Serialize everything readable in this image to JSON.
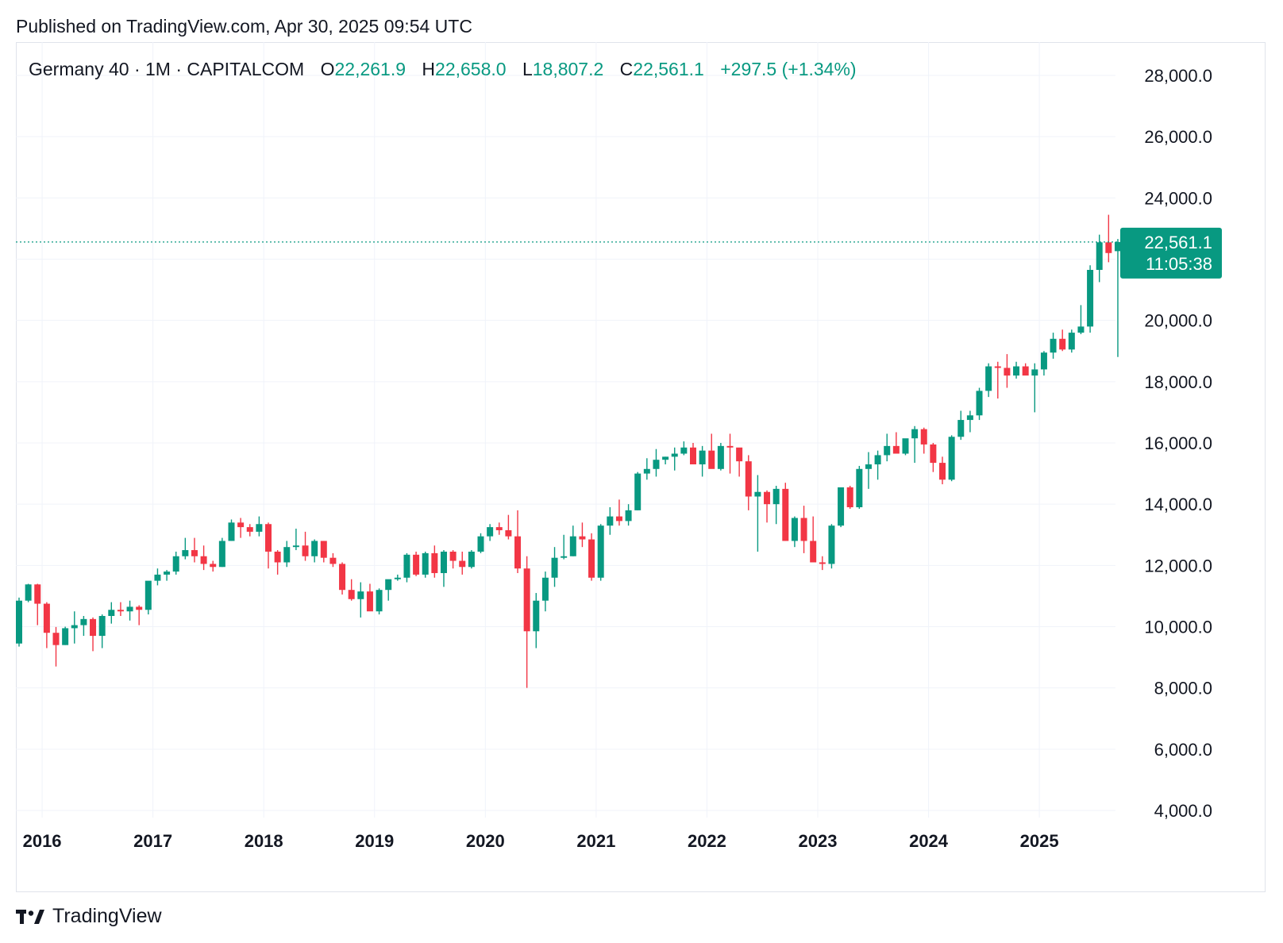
{
  "header": {
    "published": "Published on TradingView.com, Apr 30, 2025 09:54 UTC"
  },
  "legend": {
    "symbol": "Germany 40 · 1M · CAPITALCOM",
    "o_label": "O",
    "o_value": "22,261.9",
    "h_label": "H",
    "h_value": "22,658.0",
    "l_label": "L",
    "l_value": "18,807.2",
    "c_label": "C",
    "c_value": "22,561.1",
    "change": "+297.5 (+1.34%)"
  },
  "price_tag": {
    "price": "22,561.1",
    "countdown": "11:05:38"
  },
  "brand": {
    "name": "TradingView",
    "logo_icon": "tradingview-logo-icon"
  },
  "colors": {
    "up": "#089981",
    "down": "#f23645",
    "grid": "#f0f3fa",
    "text": "#131722"
  },
  "chart_data": {
    "type": "candlestick",
    "symbol": "Germany 40",
    "interval": "1M",
    "y_axis": {
      "min": 4000,
      "max": 28000,
      "ticks": [
        28000,
        26000,
        24000,
        22000,
        20000,
        18000,
        16000,
        14000,
        12000,
        10000,
        8000,
        6000,
        4000
      ],
      "tick_labels": [
        "28,000.0",
        "26,000.0",
        "24,000.0",
        "",
        "20,000.0",
        "18,000.0",
        "16,000.0",
        "14,000.0",
        "12,000.0",
        "10,000.0",
        "8,000.0",
        "6,000.0",
        "4,000.0"
      ],
      "position": "right"
    },
    "x_axis": {
      "labels": [
        "2016",
        "2017",
        "2018",
        "2019",
        "2020",
        "2021",
        "2022",
        "2023",
        "2024",
        "2025"
      ]
    },
    "grid": true,
    "last_price_line": 22561.1,
    "start": "2015-10",
    "candles": [
      [
        9450,
        10950,
        9350,
        10850
      ],
      [
        10850,
        11400,
        10800,
        11380
      ],
      [
        11380,
        11400,
        10050,
        10750
      ],
      [
        10750,
        10800,
        9300,
        9800
      ],
      [
        9800,
        9990,
        8700,
        9400
      ],
      [
        9400,
        10000,
        9400,
        9950
      ],
      [
        9950,
        10500,
        9450,
        10050
      ],
      [
        10050,
        10350,
        9700,
        10250
      ],
      [
        10250,
        10300,
        9200,
        9700
      ],
      [
        9700,
        10400,
        9300,
        10350
      ],
      [
        10350,
        10800,
        10100,
        10550
      ],
      [
        10550,
        10800,
        10350,
        10500
      ],
      [
        10500,
        10850,
        10200,
        10650
      ],
      [
        10650,
        10700,
        10050,
        10550
      ],
      [
        10550,
        11450,
        10400,
        11500
      ],
      [
        11500,
        11900,
        11350,
        11700
      ],
      [
        11700,
        11850,
        11500,
        11800
      ],
      [
        11800,
        12450,
        11700,
        12300
      ],
      [
        12300,
        12900,
        12200,
        12500
      ],
      [
        12500,
        12900,
        12100,
        12300
      ],
      [
        12300,
        12650,
        11850,
        12050
      ],
      [
        12050,
        12150,
        11800,
        11950
      ],
      [
        11950,
        12900,
        11950,
        12800
      ],
      [
        12800,
        13500,
        12800,
        13400
      ],
      [
        13400,
        13550,
        12900,
        13250
      ],
      [
        13250,
        13350,
        12950,
        13100
      ],
      [
        13100,
        13600,
        12950,
        13350
      ],
      [
        13350,
        13400,
        11900,
        12450
      ],
      [
        12450,
        12500,
        11700,
        12100
      ],
      [
        12100,
        12800,
        11950,
        12600
      ],
      [
        12600,
        13200,
        12500,
        12650
      ],
      [
        12650,
        13100,
        12150,
        12300
      ],
      [
        12300,
        12850,
        12100,
        12800
      ],
      [
        12800,
        12800,
        12100,
        12250
      ],
      [
        12250,
        12400,
        11950,
        12050
      ],
      [
        12050,
        12100,
        11050,
        11200
      ],
      [
        11200,
        11550,
        10850,
        10900
      ],
      [
        10900,
        11450,
        10300,
        11150
      ],
      [
        11150,
        11400,
        10600,
        10500
      ],
      [
        10500,
        11250,
        10400,
        11200
      ],
      [
        11200,
        11500,
        10850,
        11550
      ],
      [
        11550,
        11700,
        11500,
        11600
      ],
      [
        11600,
        12400,
        11450,
        12350
      ],
      [
        12350,
        12450,
        11650,
        11700
      ],
      [
        11700,
        12450,
        11600,
        12400
      ],
      [
        12400,
        12650,
        11600,
        11750
      ],
      [
        11750,
        12500,
        11300,
        12450
      ],
      [
        12450,
        12500,
        11900,
        12150
      ],
      [
        12150,
        12450,
        11700,
        11950
      ],
      [
        11950,
        12500,
        11900,
        12450
      ],
      [
        12450,
        13050,
        12400,
        12950
      ],
      [
        12950,
        13350,
        12800,
        13250
      ],
      [
        13250,
        13400,
        13000,
        13150
      ],
      [
        13150,
        13650,
        12850,
        12950
      ],
      [
        12950,
        13800,
        11750,
        11900
      ],
      [
        11900,
        12300,
        8000,
        9850
      ],
      [
        9850,
        11100,
        9300,
        10850
      ],
      [
        10850,
        11800,
        10500,
        11600
      ],
      [
        11600,
        12600,
        11300,
        12250
      ],
      [
        12250,
        13000,
        12200,
        12300
      ],
      [
        12300,
        13300,
        12300,
        12950
      ],
      [
        12950,
        13400,
        12600,
        12850
      ],
      [
        12850,
        13050,
        11500,
        11600
      ],
      [
        11600,
        13350,
        11500,
        13300
      ],
      [
        13300,
        13900,
        13000,
        13600
      ],
      [
        13600,
        14150,
        13300,
        13450
      ],
      [
        13450,
        14000,
        13300,
        13800
      ],
      [
        13800,
        15050,
        13800,
        15000
      ],
      [
        15000,
        15500,
        14800,
        15150
      ],
      [
        15150,
        15800,
        14900,
        15450
      ],
      [
        15450,
        15550,
        15300,
        15550
      ],
      [
        15550,
        15850,
        15100,
        15650
      ],
      [
        15650,
        16050,
        15600,
        15850
      ],
      [
        15850,
        16000,
        15300,
        15300
      ],
      [
        15300,
        15900,
        14900,
        15750
      ],
      [
        15750,
        16300,
        15300,
        15150
      ],
      [
        15150,
        16000,
        15100,
        15900
      ],
      [
        15900,
        16300,
        15000,
        15850
      ],
      [
        15850,
        15700,
        14900,
        15400
      ],
      [
        15400,
        15600,
        13800,
        14250
      ],
      [
        14250,
        14950,
        12450,
        14400
      ],
      [
        14400,
        14450,
        13400,
        14000
      ],
      [
        14000,
        14600,
        13350,
        14500
      ],
      [
        14500,
        14700,
        12800,
        12800
      ],
      [
        12800,
        13600,
        12600,
        13550
      ],
      [
        13550,
        13950,
        12400,
        12800
      ],
      [
        12800,
        13600,
        12150,
        12100
      ],
      [
        12100,
        12300,
        11850,
        12050
      ],
      [
        12050,
        13350,
        11900,
        13300
      ],
      [
        13300,
        14450,
        13250,
        14550
      ],
      [
        14550,
        14600,
        13850,
        13900
      ],
      [
        13900,
        15250,
        13850,
        15150
      ],
      [
        15150,
        15700,
        14500,
        15300
      ],
      [
        15300,
        15750,
        14800,
        15600
      ],
      [
        15600,
        16300,
        15400,
        15900
      ],
      [
        15900,
        16350,
        15650,
        15650
      ],
      [
        15650,
        16050,
        15600,
        16150
      ],
      [
        16150,
        16550,
        15350,
        16450
      ],
      [
        16450,
        16500,
        15650,
        15950
      ],
      [
        15950,
        16000,
        15050,
        15350
      ],
      [
        15350,
        15550,
        14650,
        14800
      ],
      [
        14800,
        16250,
        14750,
        16200
      ],
      [
        16200,
        17050,
        16100,
        16750
      ],
      [
        16750,
        17050,
        16350,
        16900
      ],
      [
        16900,
        17800,
        16750,
        17700
      ],
      [
        17700,
        18600,
        17500,
        18500
      ],
      [
        18500,
        18650,
        17450,
        18450
      ],
      [
        18450,
        18900,
        17800,
        18200
      ],
      [
        18200,
        18650,
        18100,
        18500
      ],
      [
        18500,
        18600,
        18300,
        18200
      ],
      [
        18200,
        18600,
        17000,
        18400
      ],
      [
        18400,
        19000,
        18200,
        18950
      ],
      [
        18950,
        19600,
        18750,
        19400
      ],
      [
        19400,
        19700,
        19000,
        19050
      ],
      [
        19050,
        19700,
        18950,
        19600
      ],
      [
        19600,
        20500,
        19550,
        19800
      ],
      [
        19800,
        21800,
        19600,
        21650
      ],
      [
        21650,
        22800,
        21250,
        22550
      ],
      [
        22550,
        23450,
        21900,
        22200
      ],
      [
        22261.9,
        22658.0,
        18807.2,
        22561.1
      ]
    ]
  }
}
